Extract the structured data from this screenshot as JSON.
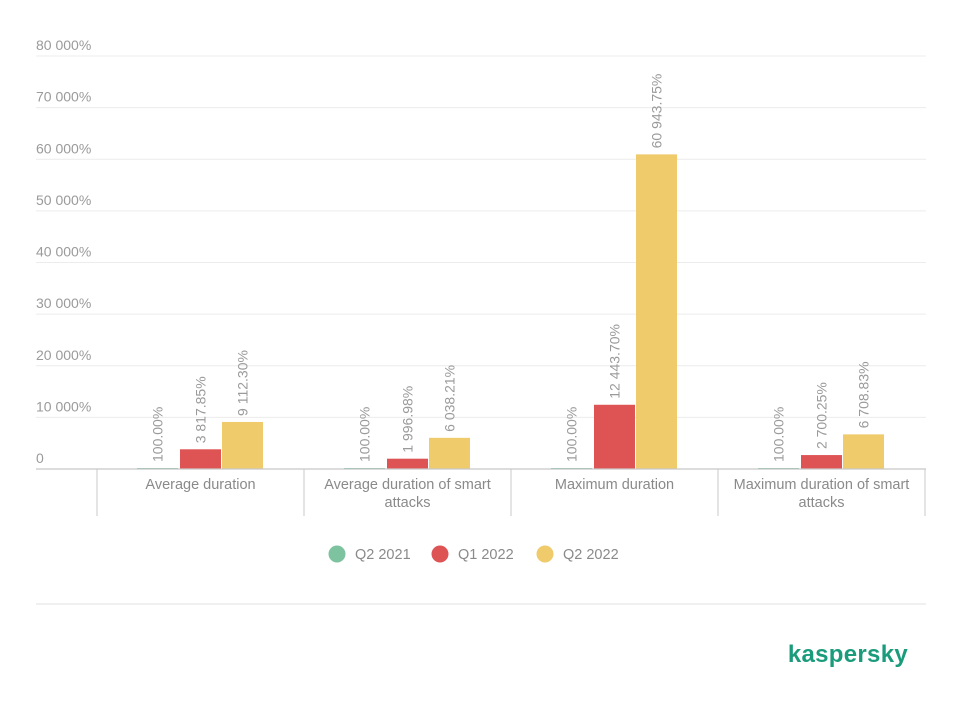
{
  "chart_data": {
    "type": "bar",
    "categories": [
      [
        "Average duration"
      ],
      [
        "Average duration of smart",
        "attacks"
      ],
      [
        "Maximum duration"
      ],
      [
        "Maximum duration of smart",
        "attacks"
      ]
    ],
    "series": [
      {
        "name": "Q2 2021",
        "color": "#7dc3a0",
        "values": [
          100.0,
          100.0,
          100.0,
          100.0
        ],
        "labels": [
          "100.00%",
          "100.00%",
          "100.00%",
          "100.00%"
        ]
      },
      {
        "name": "Q1 2022",
        "color": "#de5455",
        "values": [
          3817.85,
          1996.98,
          12443.7,
          2700.25
        ],
        "labels": [
          "3 817.85%",
          "1 996.98%",
          "12 443.70%",
          "2 700.25%"
        ]
      },
      {
        "name": "Q2 2022",
        "color": "#f0cb6b",
        "values": [
          9112.3,
          6038.21,
          60943.75,
          6708.83
        ],
        "labels": [
          "9 112.30%",
          "6 038.21%",
          "60 943.75%",
          "6 708.83%"
        ]
      }
    ],
    "ylim": [
      0,
      80000
    ],
    "yticks": [
      0,
      10000,
      20000,
      30000,
      40000,
      50000,
      60000,
      70000,
      80000
    ],
    "ytick_labels": [
      "0",
      "10 000%",
      "20 000%",
      "30 000%",
      "40 000%",
      "50 000%",
      "60 000%",
      "70 000%",
      "80 000%"
    ],
    "grid": true,
    "legend_position": "bottom-center"
  },
  "brand": {
    "name": "kaspersky",
    "color": "#1a9b7c"
  }
}
